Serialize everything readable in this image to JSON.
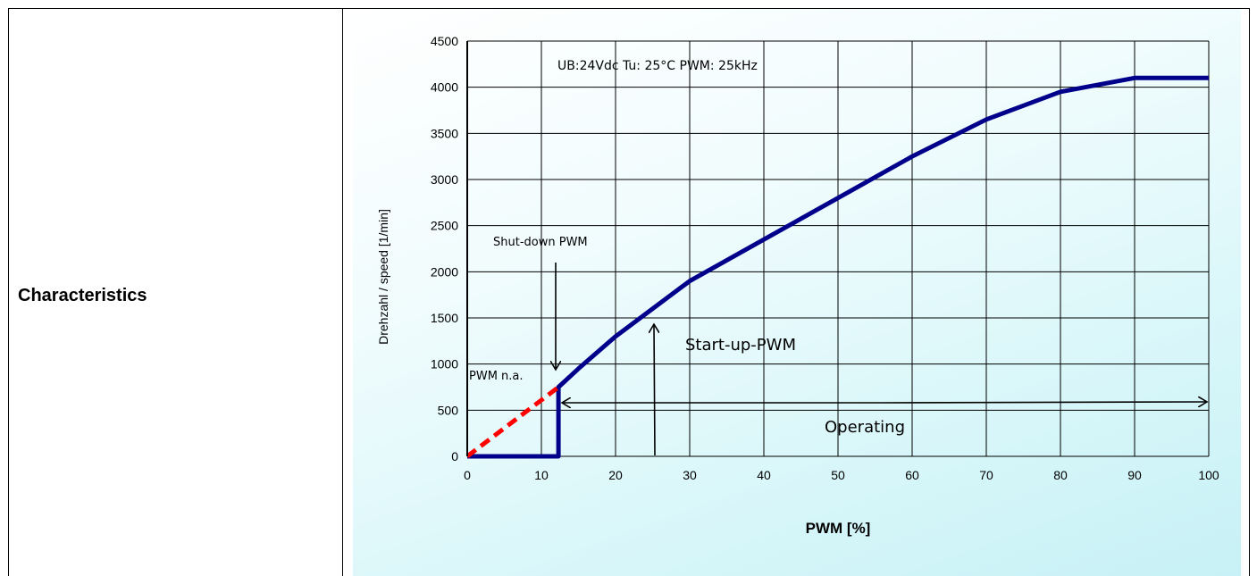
{
  "row": {
    "label": "Characteristics"
  },
  "chart_data": {
    "type": "line",
    "title": "",
    "xlabel": "PWM [%]",
    "ylabel": "Drehzahl / speed [1/min]",
    "xlim": [
      0,
      100
    ],
    "ylim": [
      0,
      4500
    ],
    "x_ticks": [
      0,
      10,
      20,
      30,
      40,
      50,
      60,
      70,
      80,
      90,
      100
    ],
    "y_ticks": [
      0,
      500,
      1000,
      1500,
      2000,
      2500,
      3000,
      3500,
      4000,
      4500
    ],
    "grid": true,
    "series": [
      {
        "color": "#00008b",
        "style": "solid",
        "x": [
          0,
          12.3,
          12.3,
          15,
          20,
          30,
          40,
          50,
          60,
          70,
          80,
          90,
          100
        ],
        "y": [
          0,
          0,
          750,
          950,
          1300,
          1900,
          2350,
          2800,
          3250,
          3650,
          3950,
          4100,
          4100
        ]
      },
      {
        "color": "#ff0000",
        "style": "dashed",
        "x": [
          0,
          12.3
        ],
        "y": [
          0,
          750
        ]
      }
    ],
    "annotations": {
      "conditions": "UB:24Vdc Tu: 25°C PWM: 25kHz",
      "shutdown": "Shut-down PWM",
      "pwm_na": "PWM n.a.",
      "startup": "Start-up-PWM",
      "operating": "Operating"
    }
  }
}
